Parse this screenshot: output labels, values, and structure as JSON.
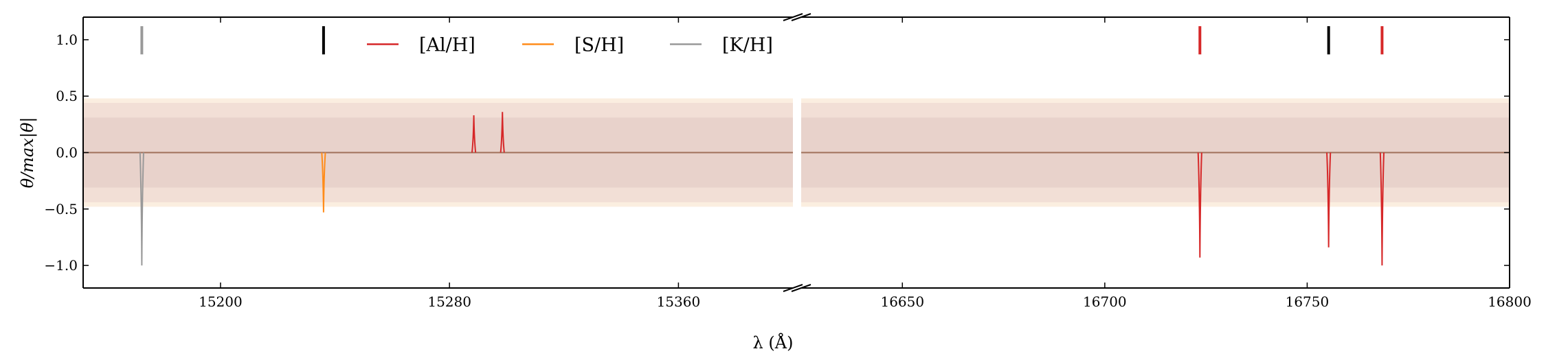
{
  "chart_data": {
    "type": "line",
    "xlabel": "λ (Å)",
    "ylabel": "θ/max|θ|",
    "ylim": [
      -1.2,
      1.2
    ],
    "yticks": [
      -1.0,
      -0.5,
      0.0,
      0.5,
      1.0
    ],
    "ytick_labels": [
      "−1.0",
      "−0.5",
      "0.0",
      "0.5",
      "1.0"
    ],
    "grid": false,
    "axis_break": true,
    "legend_placement": "top, inside left panel",
    "panels": [
      {
        "xlim": [
          15152,
          15400
        ],
        "xticks": [
          15200,
          15280,
          15360
        ],
        "xtick_labels": [
          "15200",
          "15280",
          "15360"
        ]
      },
      {
        "xlim": [
          16625,
          16800
        ],
        "xticks": [
          16650,
          16700,
          16750,
          16800
        ],
        "xtick_labels": [
          "16650",
          "16700",
          "16750",
          "16800"
        ]
      }
    ],
    "bands": [
      {
        "lower": -0.48,
        "upper": 0.48,
        "color": "#fbeee0"
      },
      {
        "lower": -0.44,
        "upper": 0.44,
        "color": "#f2dfd6"
      },
      {
        "lower": -0.31,
        "upper": 0.31,
        "color": "#e8d2cb"
      }
    ],
    "baseline_color": "#a0705a",
    "series": [
      {
        "name": "[Al/H]",
        "color": "#d62728",
        "lines": [
          {
            "center": 15288.5,
            "depth": 0.33
          },
          {
            "center": 15298.5,
            "depth": 0.36
          },
          {
            "center": 16723.5,
            "depth": -0.93
          },
          {
            "center": 16755.3,
            "depth": -0.84
          },
          {
            "center": 16768.5,
            "depth": -1.0
          }
        ]
      },
      {
        "name": "[S/H]",
        "color": "#ff8c1a",
        "lines": [
          {
            "center": 15236.0,
            "depth": -0.53
          }
        ]
      },
      {
        "name": "[K/H]",
        "color": "#999999",
        "lines": [
          {
            "center": 15172.5,
            "depth": -1.0
          }
        ]
      }
    ],
    "markers": [
      {
        "x": 15172.5,
        "color": "#999999"
      },
      {
        "x": 15236.0,
        "color": "#000000"
      },
      {
        "x": 16723.5,
        "color": "#d62728"
      },
      {
        "x": 16755.3,
        "color": "#000000"
      },
      {
        "x": 16768.5,
        "color": "#d62728"
      }
    ]
  }
}
